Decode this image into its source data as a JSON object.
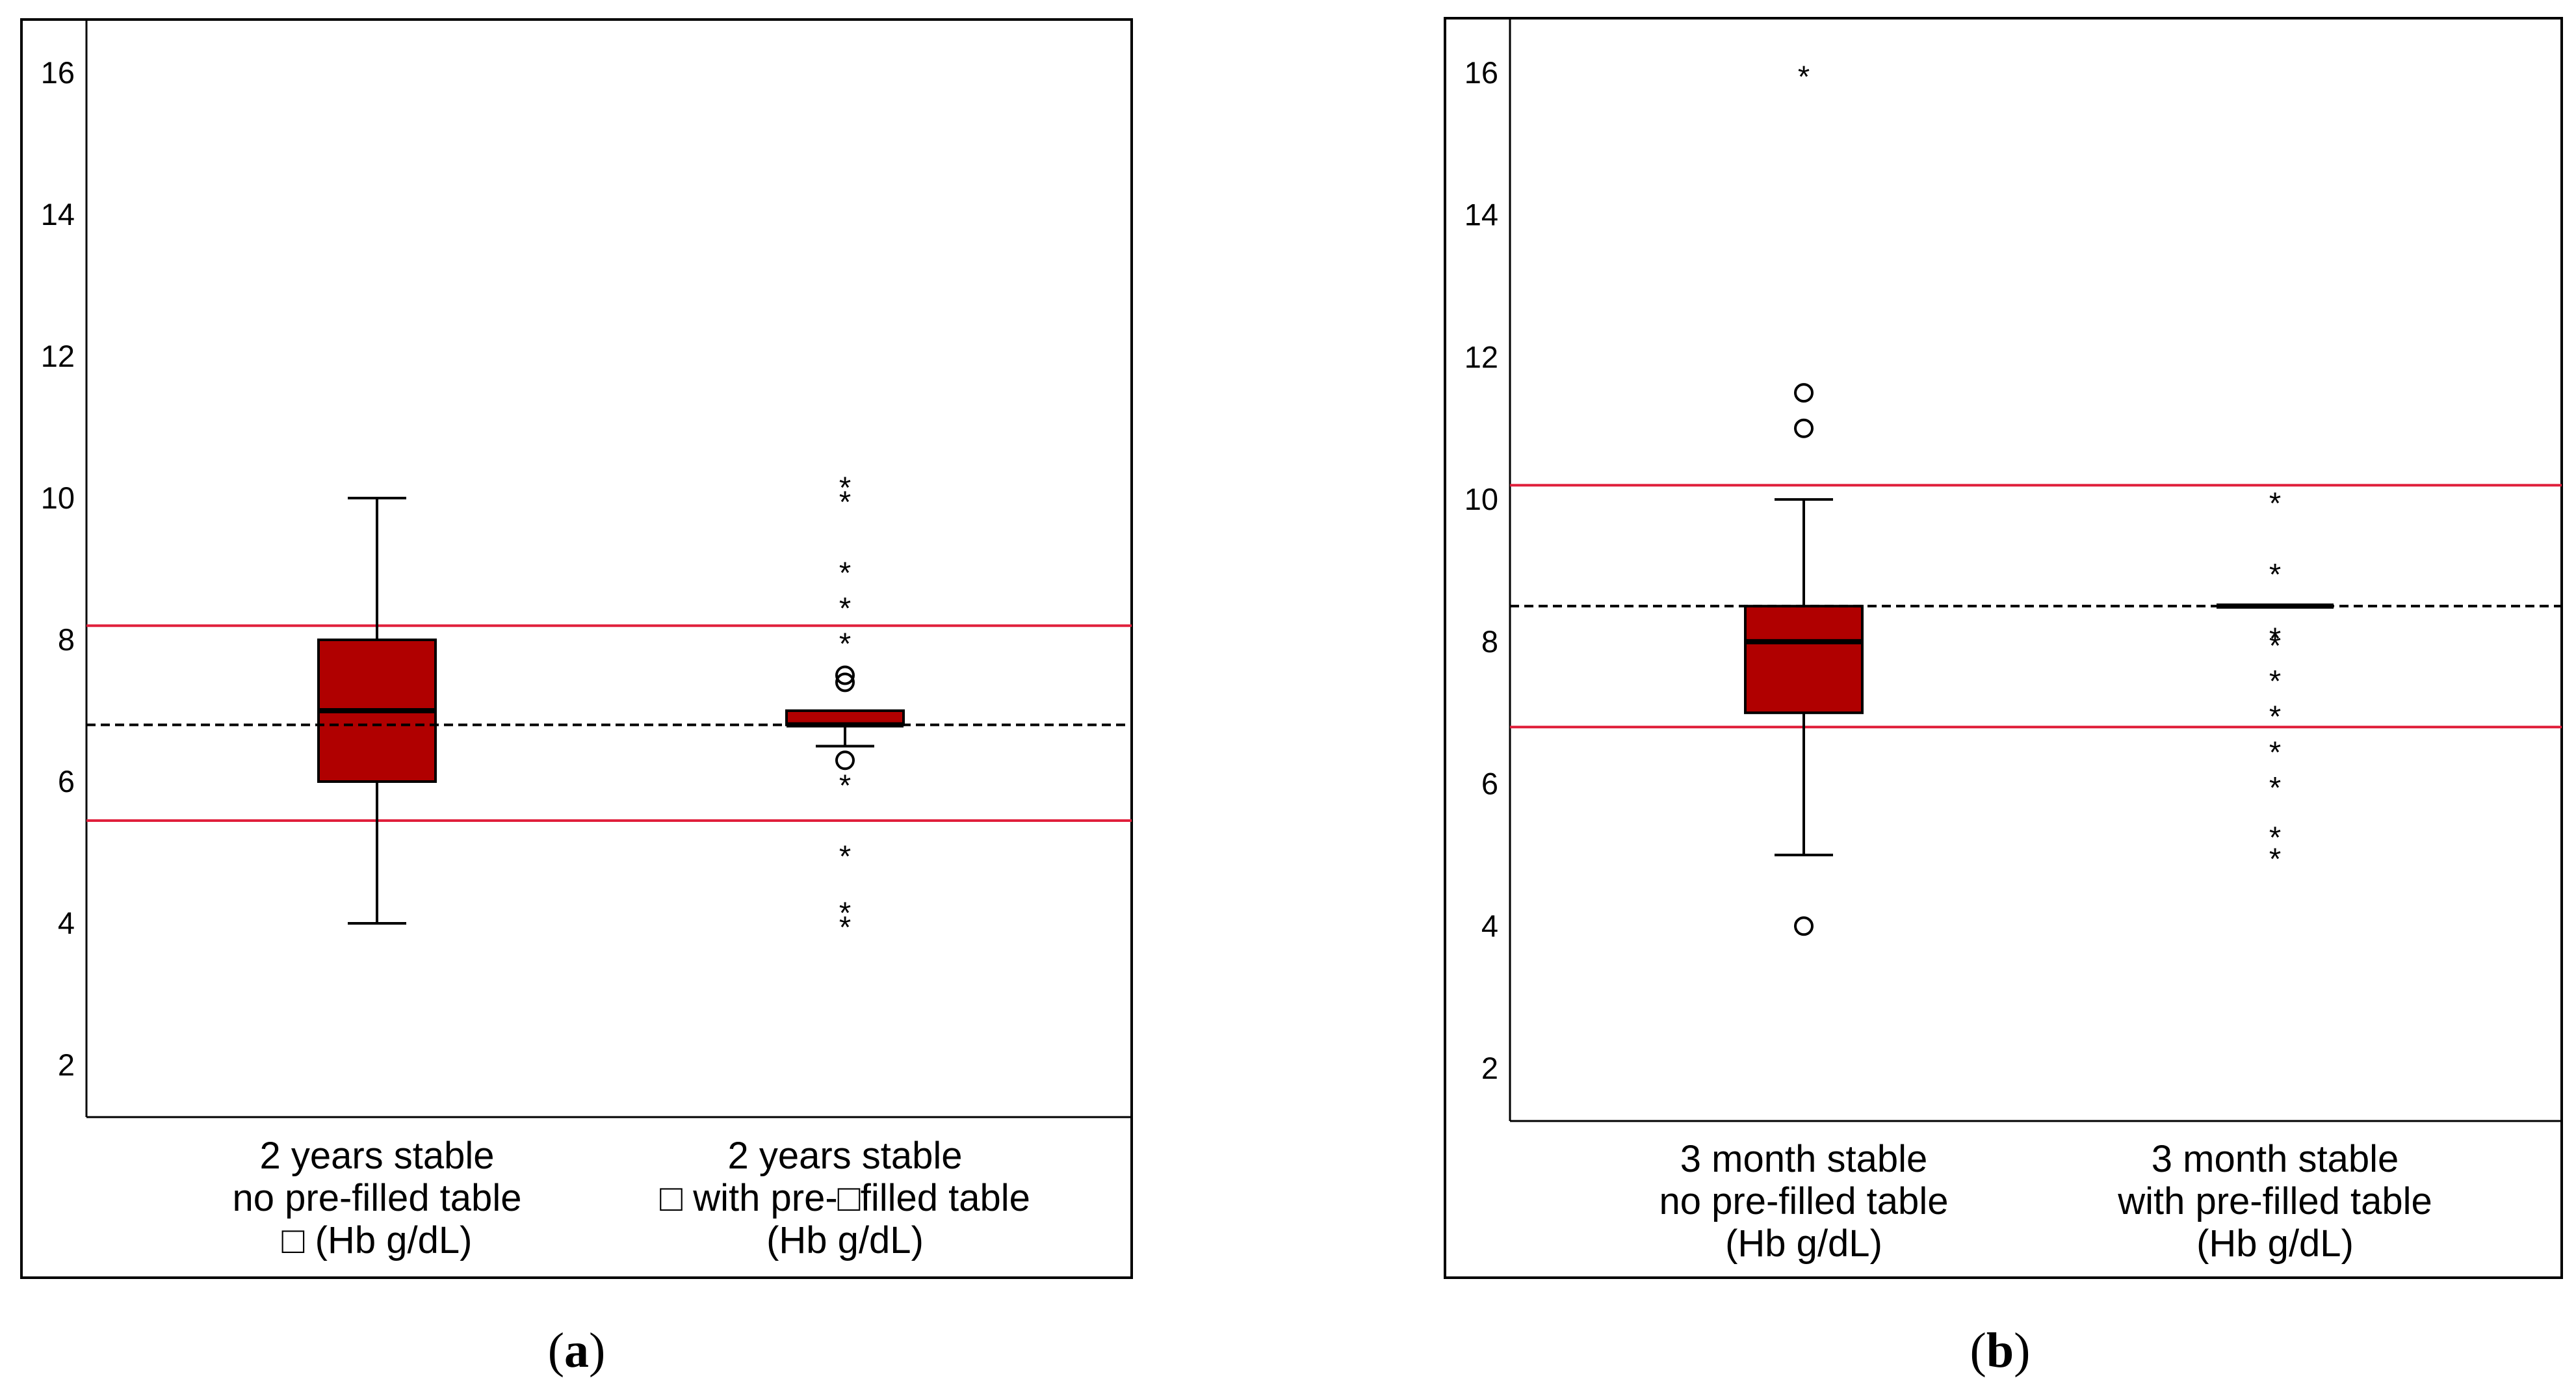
{
  "colors": {
    "box_fill": "#b00000",
    "reference_line": "#e0203c",
    "mean_line": "#000000"
  },
  "chart_data": [
    {
      "type": "boxplot",
      "panel_label": "(a)",
      "panel_letter": "a",
      "ylim": [
        1,
        16.8
      ],
      "yticks": [
        2,
        4,
        6,
        8,
        10,
        12,
        14,
        16
      ],
      "ytick_labels": [
        "2",
        "4",
        "6",
        "8",
        "10",
        "12",
        "14",
        "16"
      ],
      "reference_lines": {
        "upper": 8.2,
        "lower": 5.45,
        "dashed": 6.8
      },
      "categories": [
        {
          "label_lines": [
            "2 years stable",
            "no pre-filled table",
            "□    (Hb g/dL)"
          ],
          "whisker_low": 4,
          "q1": 6,
          "median": 7,
          "q3": 8,
          "whisker_high": 10,
          "outliers_circle": [],
          "outliers_star": []
        },
        {
          "label_lines": [
            "2 years stable",
            "□ with pre-□filled table",
            "(Hb g/dL)"
          ],
          "whisker_low": 6.5,
          "q1": 6.8,
          "median": 6.8,
          "q3": 7,
          "whisker_high": 7,
          "outliers_circle": [
            7.4,
            7.5,
            6.3
          ],
          "outliers_star": [
            10.2,
            10,
            9,
            8.5,
            8,
            6,
            5,
            4.2,
            4
          ]
        }
      ]
    },
    {
      "type": "boxplot",
      "panel_label": "(b)",
      "panel_letter": "b",
      "ylim": [
        1,
        16.8
      ],
      "yticks": [
        2,
        4,
        6,
        8,
        10,
        12,
        14,
        16
      ],
      "ytick_labels": [
        "2",
        "4",
        "6",
        "8",
        "10",
        "12",
        "14",
        "16"
      ],
      "reference_lines": {
        "upper": 10.2,
        "lower": 6.8,
        "dashed": 8.5
      },
      "categories": [
        {
          "label_lines": [
            "3 month stable",
            "no pre-filled table",
            "(Hb g/dL)"
          ],
          "whisker_low": 5,
          "q1": 7,
          "median": 8,
          "q3": 8.5,
          "whisker_high": 10,
          "outliers_circle": [
            11.5,
            11,
            4
          ],
          "outliers_star": [
            16
          ]
        },
        {
          "label_lines": [
            "3 month stable",
            "with pre-filled table",
            "(Hb g/dL)"
          ],
          "whisker_low": 8.5,
          "q1": 8.5,
          "median": 8.5,
          "q3": 8.5,
          "whisker_high": 8.5,
          "outliers_circle": [],
          "outliers_star": [
            10,
            9,
            8.1,
            8,
            7.5,
            7,
            6.5,
            6,
            5.3,
            5
          ]
        }
      ]
    }
  ]
}
